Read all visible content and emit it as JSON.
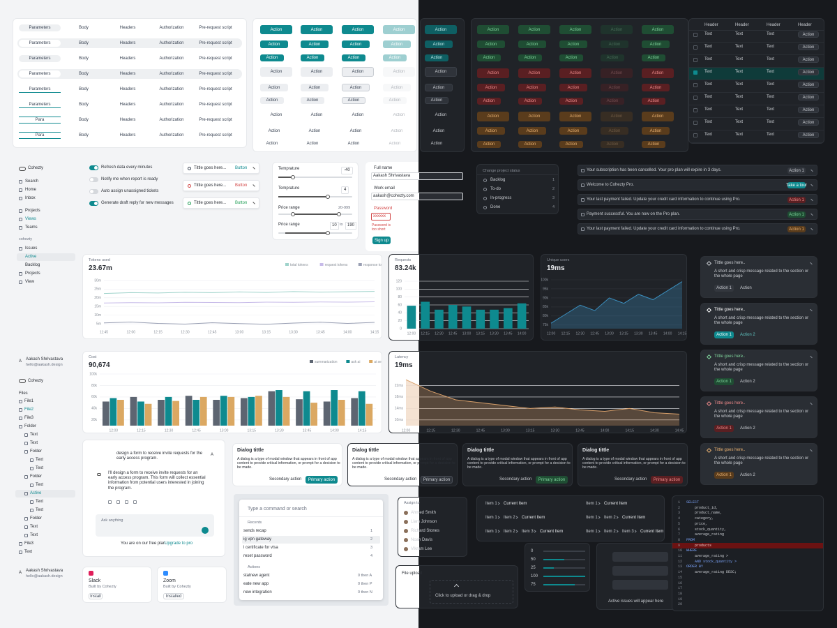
{
  "api_tabs": {
    "labels": [
      "Parameters",
      "Body",
      "Headers",
      "Authorization",
      "Pre-request script"
    ],
    "short": "Para"
  },
  "buttons": {
    "label": "Action"
  },
  "table": {
    "header": "Header",
    "cell": "Text",
    "action": "Action"
  },
  "sidebar": {
    "brand": "Cohezty",
    "nav": [
      "Search",
      "Home",
      "Inbox"
    ],
    "groups": [
      "Projects",
      "Views",
      "Teams"
    ],
    "workspace": "cohezty",
    "issues": "Issues",
    "sub": [
      "Active",
      "Backlog"
    ],
    "more": [
      "Projects",
      "View"
    ]
  },
  "user": {
    "avatar": "A",
    "name": "Aakash Shrivastava",
    "email": "hello@aakash.design"
  },
  "settings": [
    {
      "label": "Refresh data every minutes",
      "on": true
    },
    {
      "label": "Notify me when report is ready",
      "on": false
    },
    {
      "label": "Auto assign unassigned tickets",
      "on": false
    },
    {
      "label": "Generate draft reply for new messages",
      "on": true
    }
  ],
  "toasts": {
    "title": "Tittle goes here...",
    "button": "Button",
    "tones": [
      "neutral",
      "red",
      "green"
    ]
  },
  "sliders": {
    "temp_label": "Temprature",
    "temp_values": [
      -40,
      4
    ],
    "range_label": "Price range",
    "range_text": "20-999",
    "range_min": 10,
    "range_sep": "to",
    "range_max": 190
  },
  "signup": {
    "name_label": "Full name",
    "name": "Aakash Shrivastava",
    "email_label": "Work email",
    "email": "aakash@cohezty.com",
    "password_label": "Password",
    "password": "xxxxxx",
    "error": "Password is too short",
    "submit": "Sign up"
  },
  "status_menu": {
    "placeholder": "Change project status",
    "options": [
      {
        "label": "Backlog",
        "key": "1"
      },
      {
        "label": "To-do",
        "key": "2"
      },
      {
        "label": "In-progress",
        "key": "3"
      },
      {
        "label": "Done",
        "key": "4"
      }
    ]
  },
  "alerts": [
    {
      "text": "Your subscription has been cancelled. Your pro plan will expire in 3 days.",
      "action": "Action 1",
      "tone": "neutral"
    },
    {
      "text": "Welcome to Cohezty Pro.",
      "action": "Take a tour",
      "tone": "teal"
    },
    {
      "text": "Your last payment failed. Update your credit card information to continue using Pro.",
      "action": "Action 1",
      "tone": "red"
    },
    {
      "text": "Payment successful. You are now on the Pro plan.",
      "action": "Action 1",
      "tone": "green"
    },
    {
      "text": "Your last payment failed. Update your credit card information to continue using Pro.",
      "action": "Action 1",
      "tone": "orange"
    }
  ],
  "charts": {
    "tokens": {
      "type": "line",
      "title": "Tokens used",
      "headline": "23.67m",
      "categories": [
        "11:45",
        "12:00",
        "12:15",
        "12:30",
        "12:45",
        "13:00",
        "13:15",
        "13:30",
        "13:45",
        "14:00",
        "14:15"
      ],
      "series": [
        {
          "name": "total tokens",
          "color": "#9fd3cb",
          "values": [
            22.5,
            23,
            22.8,
            23.2,
            23,
            23.4,
            23.1,
            23.6,
            23.3,
            23.5,
            23.7
          ]
        },
        {
          "name": "request tokens",
          "color": "#c7bbe9",
          "values": [
            17,
            17.2,
            17.1,
            17.4,
            17.3,
            17.2,
            17.5,
            17.4,
            17.6,
            17.5,
            17.7
          ]
        },
        {
          "name": "response tokens",
          "color": "#9aa0b4",
          "values": [
            5.5,
            6,
            5.2,
            4.8,
            5.6,
            5.1,
            4.7,
            5.4,
            5.9,
            5.2,
            5.8
          ]
        }
      ],
      "ylim": [
        3,
        32
      ],
      "yticks": [
        {
          "value": 5,
          "label": "5m"
        },
        {
          "value": 10,
          "label": "10m"
        },
        {
          "value": 15,
          "label": "15m"
        },
        {
          "value": 20,
          "label": "20m"
        },
        {
          "value": 25,
          "label": "25m"
        },
        {
          "value": 30,
          "label": "30m"
        }
      ]
    },
    "requests": {
      "type": "bar",
      "title": "Requests",
      "headline": "83.24k",
      "color": "#0e8a8f",
      "categories": [
        "12:00",
        "12:15",
        "12:30",
        "12:45",
        "13:00",
        "13:15",
        "13:30",
        "13:45",
        "14:00"
      ],
      "values": [
        58,
        68,
        48,
        60,
        56,
        48,
        48,
        52,
        64
      ],
      "ylim": [
        0,
        120
      ],
      "yticks": [
        0,
        20,
        40,
        60,
        80,
        100,
        120
      ]
    },
    "users": {
      "type": "area",
      "title": "Unique users",
      "headline": "19ms",
      "color": "#3b8fbf",
      "categories": [
        "12:00",
        "12:15",
        "12:30",
        "12:45",
        "13:00",
        "13:15",
        "13:30",
        "13:45",
        "14:00",
        "14:15"
      ],
      "values": [
        76,
        81,
        86,
        83,
        90,
        87,
        92,
        89,
        94,
        99
      ],
      "ylim": [
        73,
        100
      ],
      "yticks": [
        {
          "value": 75,
          "label": "75k"
        },
        {
          "value": 80,
          "label": "80k"
        },
        {
          "value": 85,
          "label": "85k"
        },
        {
          "value": 90,
          "label": "90k"
        },
        {
          "value": 95,
          "label": "95k"
        },
        {
          "value": 100,
          "label": "100k"
        }
      ]
    },
    "cost": {
      "type": "grouped-bar",
      "title": "Cost",
      "headline": "90,674",
      "categories": [
        "12:00",
        "12:15",
        "12:30",
        "12:45",
        "13:00",
        "13:15",
        "13:30",
        "13:45",
        "14:00",
        "14:15"
      ],
      "series": [
        {
          "name": "summarization",
          "color": "#5d6571",
          "values": [
            52,
            60,
            55,
            62,
            55,
            58,
            70,
            56,
            52,
            58
          ]
        },
        {
          "name": "ask ai",
          "color": "#0e8a8f",
          "values": [
            58,
            52,
            60,
            55,
            62,
            60,
            72,
            70,
            72,
            70
          ]
        },
        {
          "name": "ai search",
          "color": "#dba862",
          "values": [
            55,
            48,
            53,
            60,
            60,
            62,
            60,
            50,
            55,
            48
          ]
        }
      ],
      "ylim": [
        10,
        100
      ],
      "yticks": [
        {
          "value": 20,
          "label": "20k"
        },
        {
          "value": 40,
          "label": "40k"
        },
        {
          "value": 60,
          "label": "60k"
        },
        {
          "value": 80,
          "label": "80k"
        },
        {
          "value": 100,
          "label": "100k"
        }
      ]
    },
    "latency": {
      "type": "area",
      "title": "Latency",
      "headline": "19ms",
      "color": "#d9a06a",
      "categories": [
        "12:00",
        "12:15",
        "12:30",
        "12:45",
        "13:00",
        "13:15",
        "13:30",
        "13:45",
        "14:00",
        "14:15",
        "14:30",
        "14:45"
      ],
      "values": [
        24,
        20,
        17,
        16,
        15,
        14,
        14.5,
        13.5,
        13,
        14,
        12.5,
        12
      ],
      "ylim": [
        8,
        26
      ],
      "yticks": [
        {
          "value": 10,
          "label": "10ms"
        },
        {
          "value": 14,
          "label": "14ms"
        },
        {
          "value": 18,
          "label": "18ms"
        },
        {
          "value": 22,
          "label": "22ms"
        }
      ]
    }
  },
  "notifications": {
    "title": "Tittle goes here..",
    "message": "A short and crisp message related to the  section or the whole page",
    "primary": "Action 1",
    "secondary": [
      "Action",
      "Action 2"
    ],
    "tones": [
      "neutral",
      "teal",
      "green",
      "red",
      "orange"
    ]
  },
  "files": {
    "title": "Files",
    "tree": [
      {
        "label": "File1",
        "depth": 0
      },
      {
        "label": "File2",
        "depth": 0
      },
      {
        "label": "File3",
        "depth": 0
      },
      {
        "label": "Folder",
        "depth": 0
      },
      {
        "label": "Text",
        "depth": 1
      },
      {
        "label": "Text",
        "depth": 1
      },
      {
        "label": "Folder",
        "depth": 1
      },
      {
        "label": "Text",
        "depth": 2
      },
      {
        "label": "Text",
        "depth": 2
      },
      {
        "label": "Folder",
        "depth": 1
      },
      {
        "label": "Text",
        "depth": 2
      },
      {
        "label": "Active",
        "depth": 1
      },
      {
        "label": "Text",
        "depth": 2
      },
      {
        "label": "Text",
        "depth": 2
      },
      {
        "label": "Folder",
        "depth": 1
      },
      {
        "label": "Text",
        "depth": 1
      },
      {
        "label": "Text",
        "depth": 1
      },
      {
        "label": "File3",
        "depth": 0
      },
      {
        "label": "Text",
        "depth": 0
      }
    ]
  },
  "chat": {
    "prompt": "design a form to receive invite requests for the early access program.",
    "reply": "I'll design a form to receive invite requests for an early access program. This form will collect essential information from potential users interested in joining the program.",
    "input": "Ask anything",
    "plan": "You are on our free plan.",
    "upgrade": "Upgrade to pro"
  },
  "dialog": {
    "title": "Dialog tittle",
    "body": "A dialog is a type of modal window that appears in front of app content to provide critical information, or prompt for a decision to be made.",
    "secondary": "Secondary action",
    "primary": "Primary action"
  },
  "command": {
    "placeholder": "Type a command or search",
    "recents_title": "Recents",
    "recents": [
      {
        "label": "sends recap",
        "key": "1"
      },
      {
        "label": "ig vpn gateway",
        "key": "2"
      },
      {
        "label": "l certificate for vlsa",
        "key": "3"
      },
      {
        "label": "reset password",
        "key": "4"
      }
    ],
    "actions_title": "Actions",
    "actions": [
      {
        "label": "statnew agent",
        "key": "0 then A"
      },
      {
        "label": "eate new app",
        "key": "0 then P"
      },
      {
        "label": "new integration",
        "key": "0 then N"
      }
    ]
  },
  "assign": {
    "placeholder": "Assign to",
    "people": [
      "Ahmed Smith",
      "Liam Johnson",
      "Richard Stones",
      "Noah Davis",
      "Vikram Lee"
    ]
  },
  "breadcrumbs": {
    "items": [
      "Item 1",
      "Item 2",
      "Item 3"
    ],
    "current": "Current Item"
  },
  "progress": {
    "values": [
      0,
      50,
      25,
      100,
      75
    ],
    "max": 100
  },
  "empty": "Active issues will appear here",
  "upload": {
    "title": "File upload",
    "hint": "Click to upload or drag & drop"
  },
  "integrations": [
    {
      "name": "Slack",
      "by": "Built by Cohezty",
      "action": "Install"
    },
    {
      "name": "Zoom",
      "by": "Built by Cohezty",
      "action": "Installed"
    }
  ],
  "sql": {
    "numbers": [
      1,
      2,
      3,
      4,
      5,
      6,
      7,
      8,
      9,
      10,
      11,
      12,
      13,
      14,
      15,
      16,
      17,
      18,
      19,
      20
    ],
    "highlight": 9,
    "lines": [
      "SELECT",
      "    product_id,",
      "    product_name,",
      "    category,",
      "    price,",
      "    stock_quantity,",
      "    average_rating",
      "FROM",
      "    products",
      "WHERE",
      "    average_rating >",
      "    AND stock_quantity >",
      "ORDER BY",
      "    average_rating DESC;"
    ]
  }
}
